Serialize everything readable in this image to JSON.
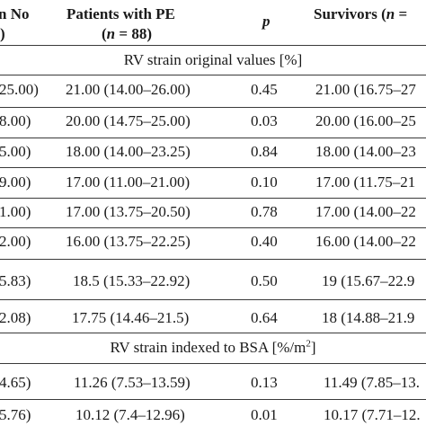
{
  "header": {
    "col1_line1": "n No",
    "col1_line2": ")",
    "pe_line1": "Patients with PE",
    "pe_line2_open": "(",
    "pe_line2_n": "n",
    "pe_line2_rest": " = 88)",
    "p_label": "p",
    "surv_label": "Survivors (",
    "surv_n": "n",
    "surv_rest": " ="
  },
  "sections": [
    {
      "title": "RV strain original values [%]"
    },
    {
      "title_before": "RV strain indexed to BSA [%/m",
      "title_sup": "2",
      "title_after": "]"
    }
  ],
  "rows": [
    {
      "c1": "25.00)",
      "pe": "21.00 (14.00–26.00)",
      "p": "0.45",
      "surv": "21.00 (16.75–27"
    },
    {
      "c1": "8.00)",
      "pe": "20.00 (14.75–25.00)",
      "p": "0.03",
      "surv": "20.00 (16.00–25"
    },
    {
      "c1": "5.00)",
      "pe": "18.00 (14.00–23.25)",
      "p": "0.84",
      "surv": "18.00 (14.00–23"
    },
    {
      "c1": "9.00)",
      "pe": "17.00 (11.00–21.00)",
      "p": "0.10",
      "surv": "17.00 (11.75–21"
    },
    {
      "c1": "1.00)",
      "pe": "17.00 (13.75–20.50)",
      "p": "0.78",
      "surv": "17.00 (14.00–22"
    },
    {
      "c1": "2.00)",
      "pe": "16.00 (13.75–22.25)",
      "p": "0.40",
      "surv": "16.00 (14.00–22"
    },
    {
      "c1": "5.83)",
      "pe": "18.5 (15.33–22.92)",
      "p": "0.50",
      "surv": "19 (15.67–22.9"
    },
    {
      "c1": "2.08)",
      "pe": "17.75 (14.46–21.5)",
      "p": "0.64",
      "surv": "18 (14.88–21.9"
    },
    {
      "c1": "4.65)",
      "pe": "11.26 (7.53–13.59)",
      "p": "0.13",
      "surv": "11.49 (7.85–13."
    },
    {
      "c1": "5.76)",
      "pe": "10.12 (7.4–12.96)",
      "p": "0.01",
      "surv": "10.17 (7.71–12."
    }
  ]
}
